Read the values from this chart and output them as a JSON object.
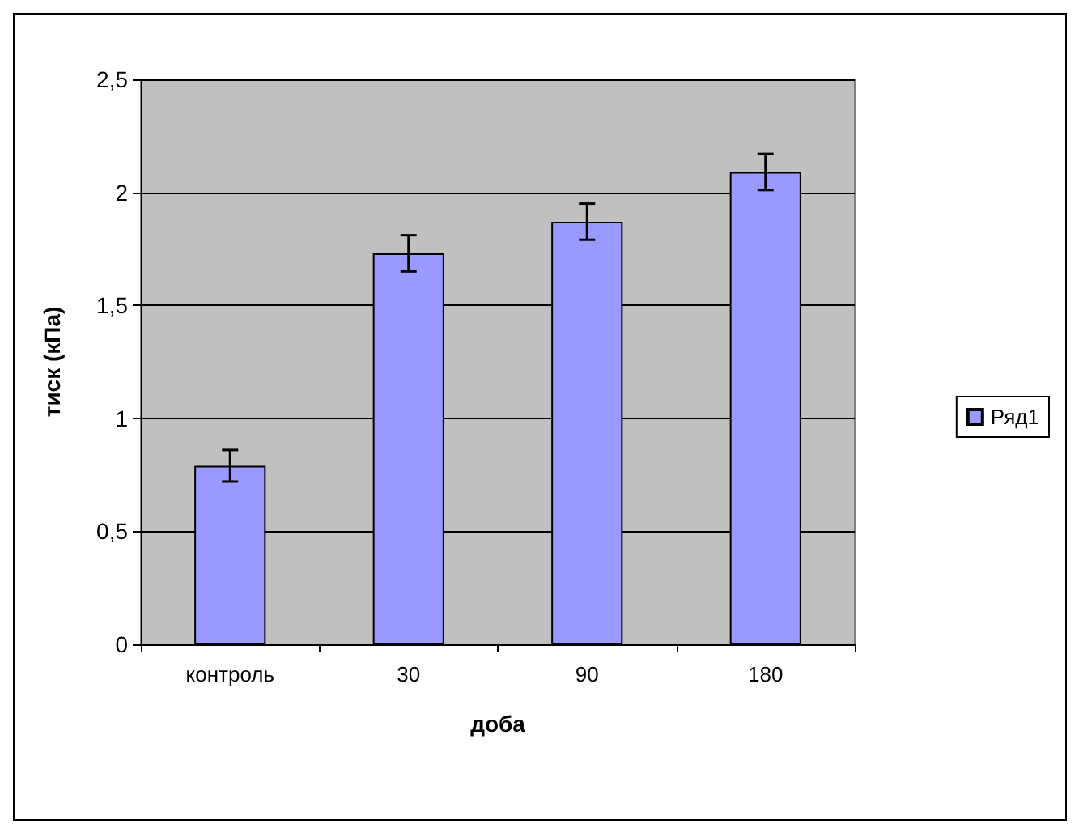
{
  "chart_data": {
    "type": "bar",
    "xlabel": "доба",
    "ylabel": "тиск (кПа)",
    "categories": [
      "контроль",
      "30",
      "90",
      "180"
    ],
    "series": [
      {
        "name": "Ряд1",
        "color": "#9999ff",
        "values": [
          0.79,
          1.73,
          1.87,
          2.09
        ],
        "errors": [
          0.07,
          0.08,
          0.08,
          0.08
        ]
      }
    ],
    "ylim": [
      0,
      2.5
    ],
    "yticks": [
      {
        "value": 0,
        "label": "0"
      },
      {
        "value": 0.5,
        "label": "0,5"
      },
      {
        "value": 1,
        "label": "1"
      },
      {
        "value": 1.5,
        "label": "1,5"
      },
      {
        "value": 2,
        "label": "2"
      },
      {
        "value": 2.5,
        "label": "2,5"
      }
    ],
    "grid": "y",
    "legend": "right"
  }
}
